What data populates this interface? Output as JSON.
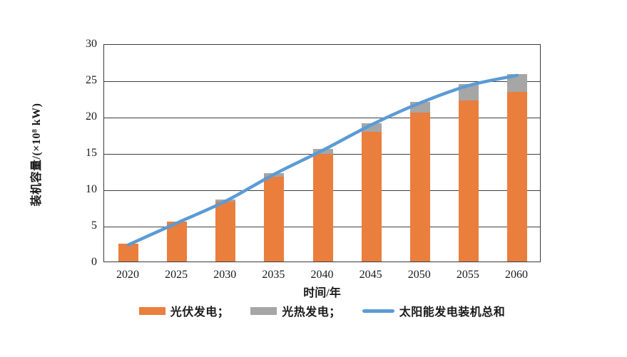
{
  "chart_data": {
    "type": "bar",
    "subtype": "stacked-bars-with-total-line",
    "title": "",
    "categories": [
      "2020",
      "2025",
      "2030",
      "2035",
      "2040",
      "2045",
      "2050",
      "2055",
      "2060"
    ],
    "series": [
      {
        "name": "光伏发电",
        "type": "bar",
        "color": "#E97E3D",
        "values": [
          2.5,
          5.5,
          8.2,
          11.7,
          14.8,
          17.8,
          20.5,
          22.2,
          23.3
        ]
      },
      {
        "name": "光热发电",
        "type": "bar",
        "color": "#A6A6A6",
        "values": [
          0,
          0,
          0.3,
          0.5,
          0.7,
          1.2,
          1.5,
          2.2,
          2.5
        ]
      },
      {
        "name": "太阳能发电装机总和",
        "type": "line",
        "color": "#5B9BD5",
        "values": [
          2.5,
          5.5,
          8.5,
          12.2,
          15.5,
          19.0,
          22.0,
          24.4,
          25.8
        ]
      }
    ],
    "stacked": true,
    "xlabel": "时间/年",
    "ylabel": "装机容量/(×10⁸ kW)",
    "ylim": [
      0,
      30
    ],
    "ytick_step": 5,
    "y_ticks": [
      "0",
      "5",
      "10",
      "15",
      "20",
      "25",
      "30"
    ],
    "grid": true,
    "legend_position": "bottom",
    "legend": [
      {
        "label": "光伏发电；",
        "swatch": "rect",
        "color": "#E97E3D"
      },
      {
        "label": "光热发电；",
        "swatch": "rect",
        "color": "#A6A6A6"
      },
      {
        "label": "太阳能发电装机总和",
        "swatch": "line",
        "color": "#5B9BD5"
      }
    ]
  },
  "colors": {
    "background": "#ffffff",
    "axis_border": "#3a3a3a",
    "gridline": "#3f3f3f",
    "text": "#1a1a1a"
  }
}
